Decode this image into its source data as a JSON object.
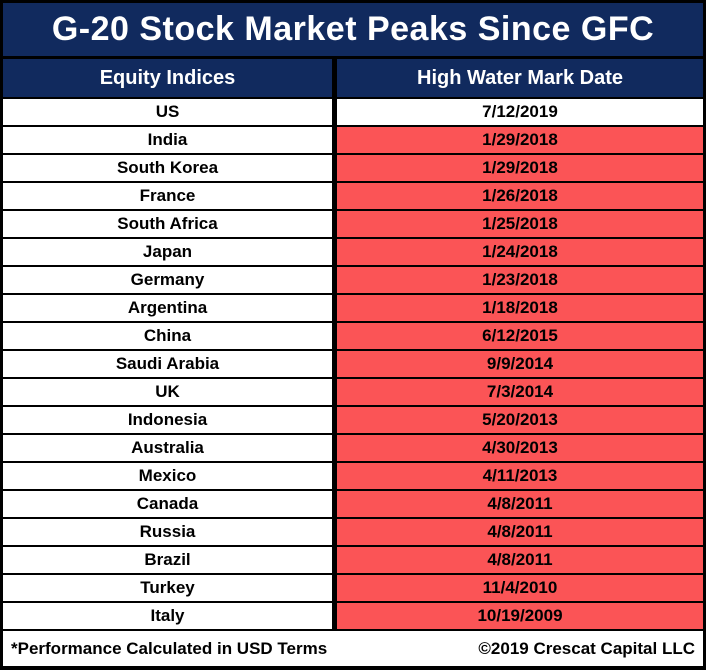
{
  "title": "G-20 Stock Market Peaks Since GFC",
  "colors": {
    "header_navy": "#112A5E",
    "highlight_red": "#FB5456",
    "grid_black": "#000000",
    "cell_white": "#FFFFFF"
  },
  "footer": {
    "left_note": "*Performance Calculated in USD Terms",
    "right_note": "©2019 Crescat Capital LLC"
  },
  "chart_data": {
    "type": "table",
    "title": "G-20 Stock Market Peaks Since GFC",
    "columns": [
      "Equity Indices",
      "High Water Mark Date"
    ],
    "rows": [
      {
        "equity_index": "US",
        "high_water_mark_date": "7/12/2019",
        "date_highlighted": false
      },
      {
        "equity_index": "India",
        "high_water_mark_date": "1/29/2018",
        "date_highlighted": true
      },
      {
        "equity_index": "South Korea",
        "high_water_mark_date": "1/29/2018",
        "date_highlighted": true
      },
      {
        "equity_index": "France",
        "high_water_mark_date": "1/26/2018",
        "date_highlighted": true
      },
      {
        "equity_index": "South Africa",
        "high_water_mark_date": "1/25/2018",
        "date_highlighted": true
      },
      {
        "equity_index": "Japan",
        "high_water_mark_date": "1/24/2018",
        "date_highlighted": true
      },
      {
        "equity_index": "Germany",
        "high_water_mark_date": "1/23/2018",
        "date_highlighted": true
      },
      {
        "equity_index": "Argentina",
        "high_water_mark_date": "1/18/2018",
        "date_highlighted": true
      },
      {
        "equity_index": "China",
        "high_water_mark_date": "6/12/2015",
        "date_highlighted": true
      },
      {
        "equity_index": "Saudi Arabia",
        "high_water_mark_date": "9/9/2014",
        "date_highlighted": true
      },
      {
        "equity_index": "UK",
        "high_water_mark_date": "7/3/2014",
        "date_highlighted": true
      },
      {
        "equity_index": "Indonesia",
        "high_water_mark_date": "5/20/2013",
        "date_highlighted": true
      },
      {
        "equity_index": "Australia",
        "high_water_mark_date": "4/30/2013",
        "date_highlighted": true
      },
      {
        "equity_index": "Mexico",
        "high_water_mark_date": "4/11/2013",
        "date_highlighted": true
      },
      {
        "equity_index": "Canada",
        "high_water_mark_date": "4/8/2011",
        "date_highlighted": true
      },
      {
        "equity_index": "Russia",
        "high_water_mark_date": "4/8/2011",
        "date_highlighted": true
      },
      {
        "equity_index": "Brazil",
        "high_water_mark_date": "4/8/2011",
        "date_highlighted": true
      },
      {
        "equity_index": "Turkey",
        "high_water_mark_date": "11/4/2010",
        "date_highlighted": true
      },
      {
        "equity_index": "Italy",
        "high_water_mark_date": "10/19/2009",
        "date_highlighted": true
      }
    ]
  }
}
